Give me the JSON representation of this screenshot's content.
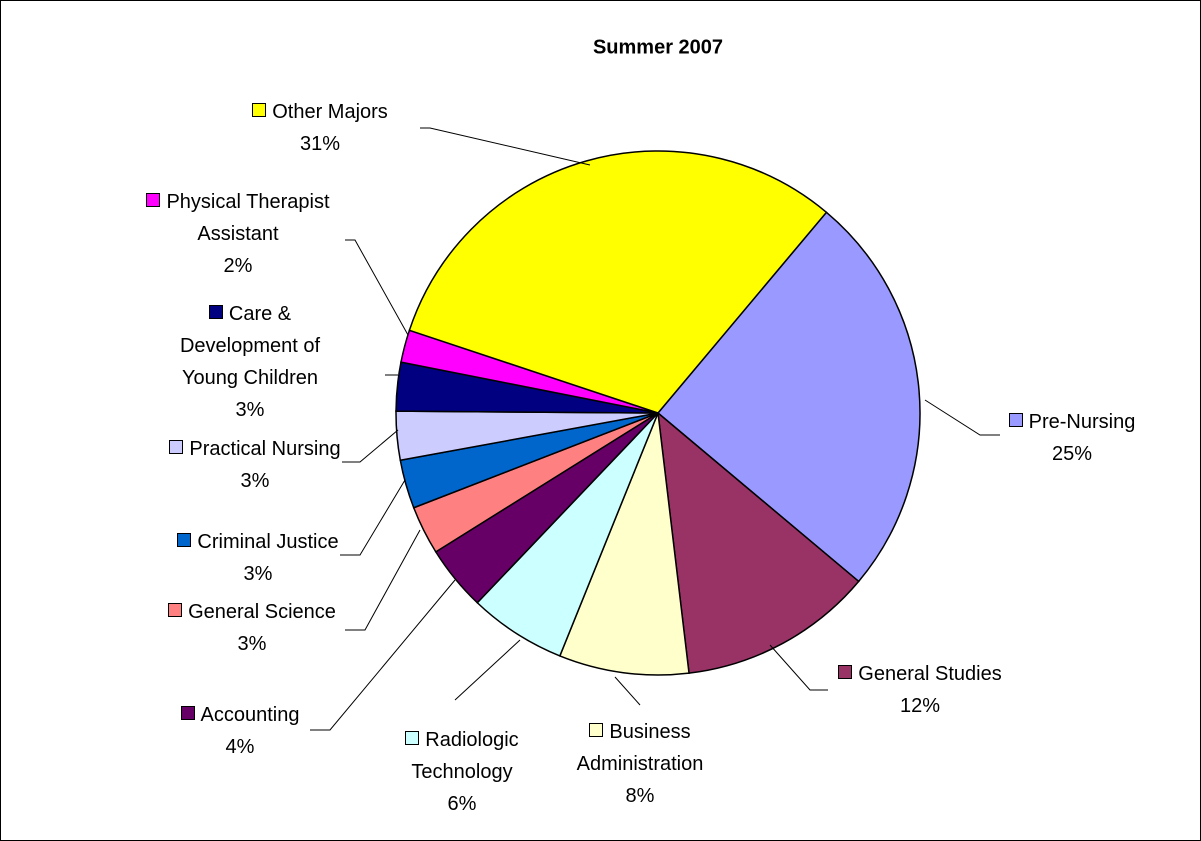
{
  "chart_data": {
    "type": "pie",
    "title": "Summer 2007",
    "categories": [
      "Pre-Nursing",
      "General Studies",
      "Business Administration",
      "Radiologic Technology",
      "Accounting",
      "General Science",
      "Criminal Justice",
      "Practical Nursing",
      "Care & Development of Young Children",
      "Physical Therapist Assistant",
      "Other Majors"
    ],
    "values": [
      25,
      12,
      8,
      6,
      4,
      3,
      3,
      3,
      3,
      2,
      31
    ],
    "value_labels": [
      "25%",
      "12%",
      "8%",
      "6%",
      "4%",
      "3%",
      "3%",
      "3%",
      "3%",
      "2%",
      "31%"
    ],
    "colors": [
      "#9999ff",
      "#993366",
      "#ffffcc",
      "#ccffff",
      "#660066",
      "#ff8080",
      "#0066cc",
      "#ccccff",
      "#000080",
      "#ff00ff",
      "#ffff00"
    ]
  }
}
